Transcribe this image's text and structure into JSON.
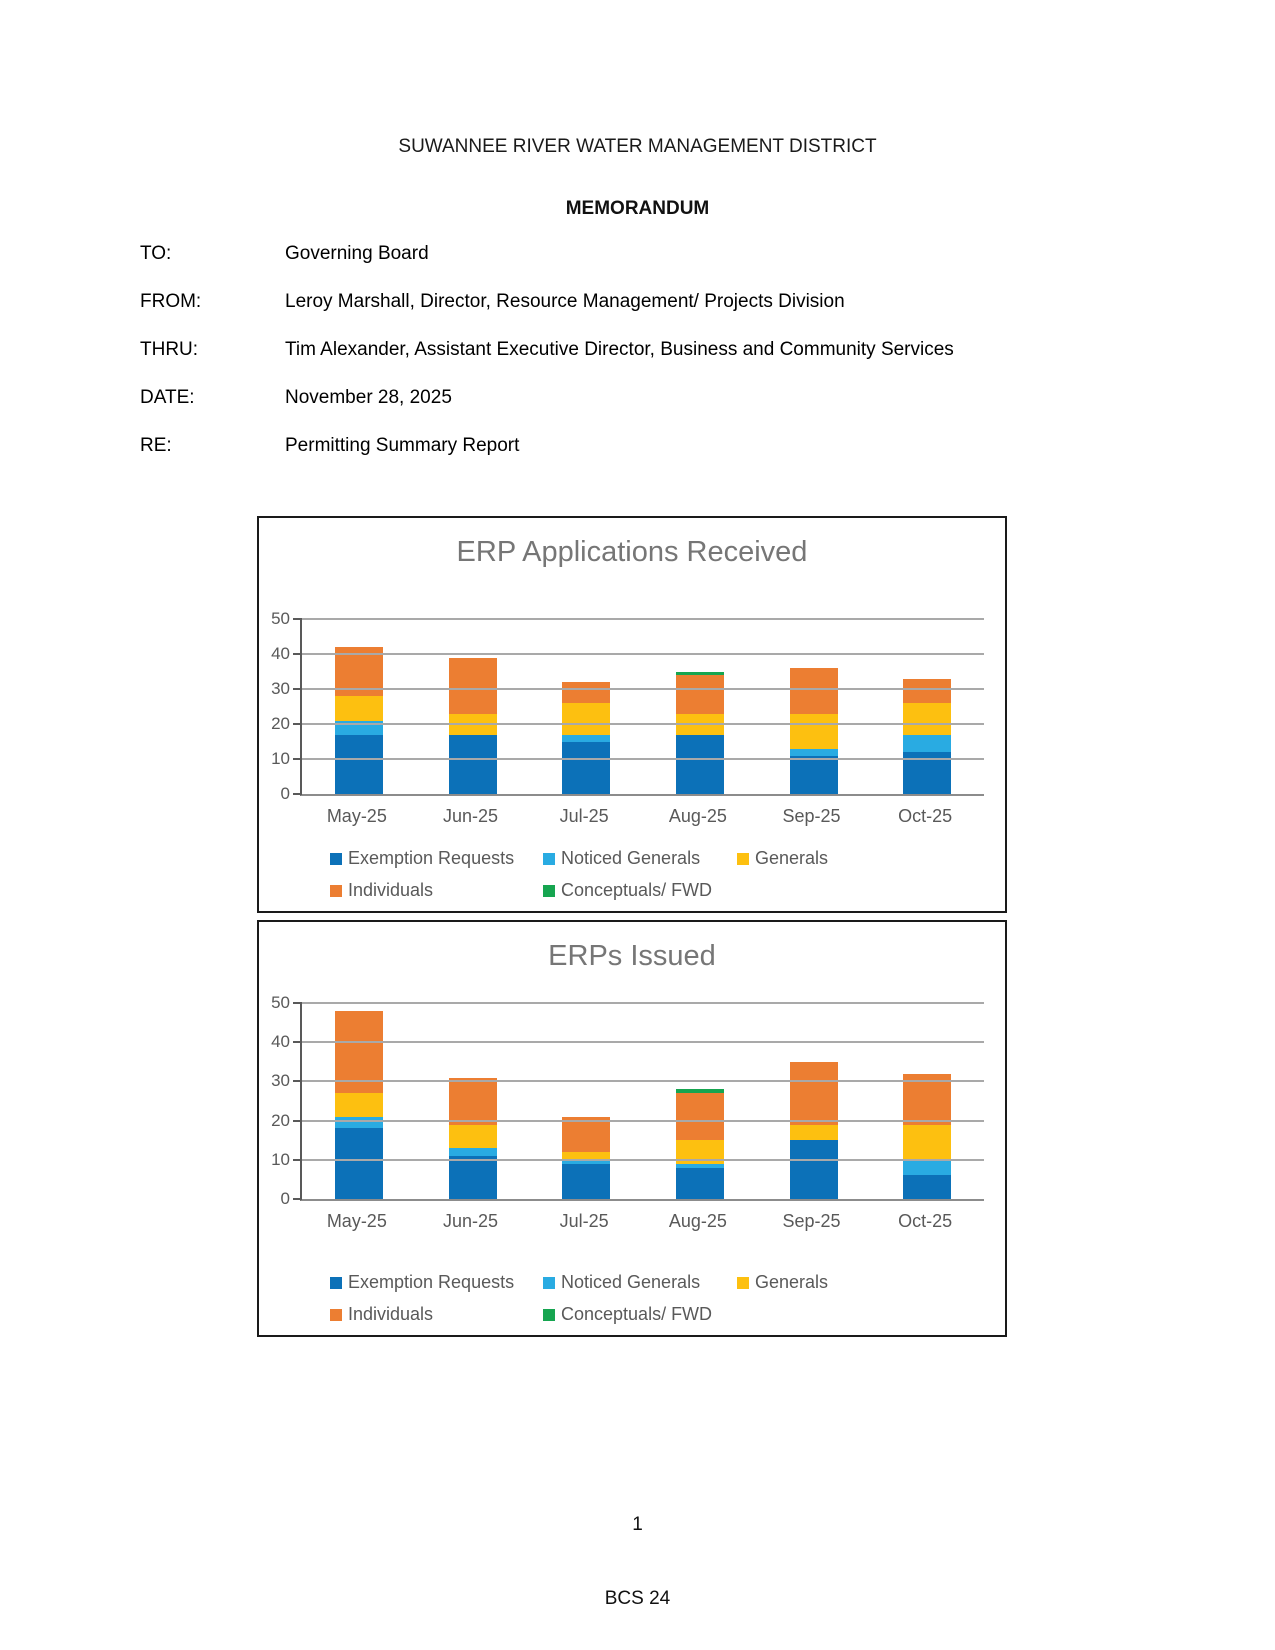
{
  "document": {
    "org_title": "SUWANNEE RIVER WATER MANAGEMENT DISTRICT",
    "doc_type": "MEMORANDUM",
    "meta": [
      {
        "label": "TO:",
        "value": "Governing Board"
      },
      {
        "label": "FROM:",
        "value": "Leroy Marshall, Director, Resource Management/ Projects Division"
      },
      {
        "label": "THRU:",
        "value": "Tim Alexander, Assistant Executive Director, Business and Community Services"
      },
      {
        "label": "DATE:",
        "value": "November 28, 2025"
      },
      {
        "label": "RE:",
        "value": "Permitting Summary Report"
      }
    ],
    "page_number": "1",
    "footer_code": "BCS 24"
  },
  "colors": {
    "exemption_requests": "#0c71b8",
    "noticed_generals": "#29abe2",
    "generals": "#fdc010",
    "individuals": "#ec7e32",
    "conceptuals_fwd": "#16a550",
    "gridline": "#a9a9a9",
    "axis_text": "#595959",
    "chart_title": "#767676"
  },
  "chart_data": [
    {
      "type": "bar",
      "stacked": true,
      "title": "ERP Applications Received",
      "categories": [
        "May-25",
        "Jun-25",
        "Jul-25",
        "Aug-25",
        "Sep-25",
        "Oct-25"
      ],
      "series": [
        {
          "name": "Exemption Requests",
          "color": "#0c71b8",
          "values": [
            17,
            17,
            15,
            17,
            11,
            12
          ]
        },
        {
          "name": "Noticed Generals",
          "color": "#29abe2",
          "values": [
            4,
            0,
            2,
            0,
            2,
            5
          ]
        },
        {
          "name": "Generals",
          "color": "#fdc010",
          "values": [
            7,
            6,
            9,
            6,
            10,
            9
          ]
        },
        {
          "name": "Individuals",
          "color": "#ec7e32",
          "values": [
            14,
            16,
            6,
            11,
            13,
            7
          ]
        },
        {
          "name": "Conceptuals/ FWD",
          "color": "#16a550",
          "values": [
            0,
            0,
            0,
            1,
            0,
            0
          ]
        }
      ],
      "totals": [
        42,
        39,
        32,
        35,
        36,
        33
      ],
      "ylim": [
        0,
        50
      ],
      "yticks": [
        0,
        10,
        20,
        30,
        40,
        50
      ],
      "grid": true,
      "legend_position": "bottom"
    },
    {
      "type": "bar",
      "stacked": true,
      "title": "ERPs Issued",
      "categories": [
        "May-25",
        "Jun-25",
        "Jul-25",
        "Aug-25",
        "Sep-25",
        "Oct-25"
      ],
      "series": [
        {
          "name": "Exemption Requests",
          "color": "#0c71b8",
          "values": [
            18,
            11,
            9,
            8,
            15,
            6
          ]
        },
        {
          "name": "Noticed Generals",
          "color": "#29abe2",
          "values": [
            3,
            2,
            1,
            1,
            0,
            4
          ]
        },
        {
          "name": "Generals",
          "color": "#fdc010",
          "values": [
            6,
            6,
            2,
            6,
            4,
            9
          ]
        },
        {
          "name": "Individuals",
          "color": "#ec7e32",
          "values": [
            21,
            12,
            9,
            12,
            16,
            13
          ]
        },
        {
          "name": "Conceptuals/ FWD",
          "color": "#16a550",
          "values": [
            0,
            0,
            0,
            1,
            0,
            0
          ]
        }
      ],
      "totals": [
        48,
        31,
        21,
        28,
        35,
        32
      ],
      "ylim": [
        0,
        50
      ],
      "yticks": [
        0,
        10,
        20,
        30,
        40,
        50
      ],
      "grid": true,
      "legend_position": "bottom"
    }
  ]
}
